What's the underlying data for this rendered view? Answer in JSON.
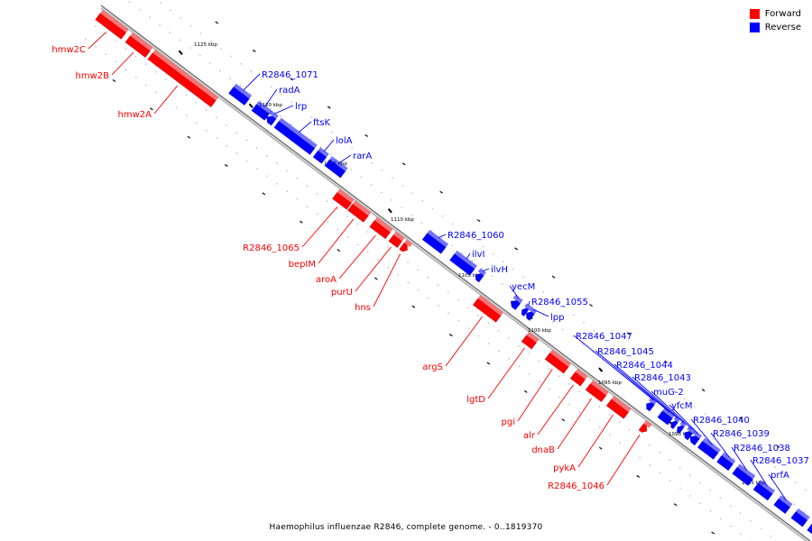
{
  "caption": "Haemophilus influenzae R2846, complete genome. - 0..1819370",
  "legend": [
    {
      "label": "Forward",
      "color": "#ff0000"
    },
    {
      "label": "Reverse",
      "color": "#0000ff"
    }
  ],
  "colors": {
    "forward": "#ff0000",
    "reverse": "#0000ff",
    "backbone": "#888888"
  },
  "ticks": [
    "1125 kbp",
    "1120 kbp",
    "1115 kbp",
    "1110 kbp",
    "1105 kbp",
    "1100 kbp",
    "1095 kbp",
    "1090 kbp",
    "1085 kbp"
  ],
  "forward_genes": [
    "hmw2C",
    "hmw2B",
    "hmw2A",
    "R2846_1065",
    "bepIM",
    "aroA",
    "purU",
    "hns",
    "argS",
    "lgtD",
    "pgi",
    "alr",
    "dnaB",
    "pykA",
    "R2846_1046"
  ],
  "reverse_genes": [
    "R2846_1071",
    "radA",
    "lrp",
    "ftsK",
    "lolA",
    "rarA",
    "R2846_1060",
    "ilvI",
    "ilvH",
    "yecM",
    "R2846_1055",
    "lpp",
    "R2846_1047",
    "R2846_1045",
    "R2846_1044",
    "R2846_1043",
    "muG-2",
    "yfcM",
    "R2846_1040",
    "R2846_1039",
    "R2846_1038",
    "R2846_1037",
    "prfA"
  ]
}
